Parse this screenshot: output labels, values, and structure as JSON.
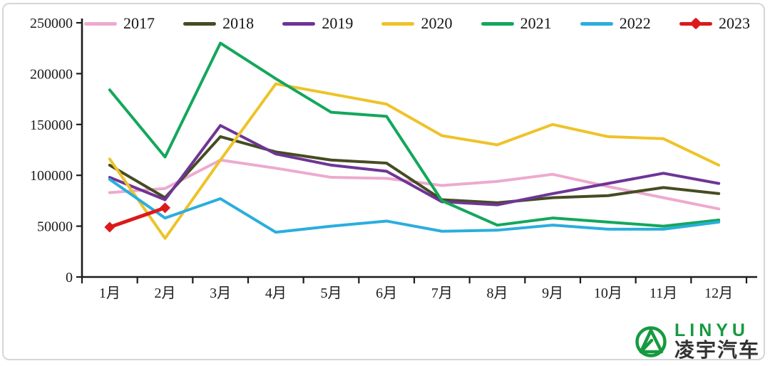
{
  "chart_data": {
    "type": "line",
    "title": "",
    "xlabel": "",
    "ylabel": "",
    "categories": [
      "1月",
      "2月",
      "3月",
      "4月",
      "5月",
      "6月",
      "7月",
      "8月",
      "9月",
      "10月",
      "11月",
      "12月"
    ],
    "series": [
      {
        "name": "2017",
        "color": "#edaacf",
        "marker": "none",
        "values": [
          83000,
          87000,
          115000,
          107000,
          98000,
          97000,
          90000,
          94000,
          101000,
          89000,
          78000,
          67000
        ]
      },
      {
        "name": "2018",
        "color": "#454c22",
        "marker": "none",
        "values": [
          110000,
          78000,
          138000,
          123000,
          115000,
          112000,
          76000,
          73000,
          78000,
          80000,
          88000,
          82000
        ]
      },
      {
        "name": "2019",
        "color": "#6e3596",
        "marker": "none",
        "values": [
          98000,
          76000,
          149000,
          121000,
          110000,
          104000,
          74000,
          71000,
          82000,
          92000,
          102000,
          92000
        ]
      },
      {
        "name": "2020",
        "color": "#eec329",
        "marker": "none",
        "values": [
          116000,
          38000,
          115000,
          190000,
          180000,
          170000,
          139000,
          130000,
          150000,
          138000,
          136000,
          110000
        ]
      },
      {
        "name": "2021",
        "color": "#13a75b",
        "marker": "none",
        "values": [
          184000,
          118000,
          230000,
          195000,
          162000,
          158000,
          75000,
          51000,
          58000,
          54000,
          50000,
          56000
        ]
      },
      {
        "name": "2022",
        "color": "#2aaede",
        "marker": "none",
        "values": [
          96000,
          58000,
          77000,
          44000,
          50000,
          55000,
          45000,
          46000,
          51000,
          47000,
          47000,
          54000
        ]
      },
      {
        "name": "2023",
        "color": "#dc1a1a",
        "marker": "diamond",
        "values": [
          49000,
          68000,
          null,
          null,
          null,
          null,
          null,
          null,
          null,
          null,
          null,
          null
        ]
      }
    ],
    "ylim": [
      0,
      250000
    ],
    "ytick_step": 50000,
    "yticks": [
      "0",
      "50000",
      "100000",
      "150000",
      "200000",
      "250000"
    ],
    "grid": false,
    "legend_position": "top"
  },
  "logo": {
    "latin": "LINYU",
    "chinese": "凌宇汽车",
    "green": "#169a3f",
    "dark": "#333333"
  }
}
